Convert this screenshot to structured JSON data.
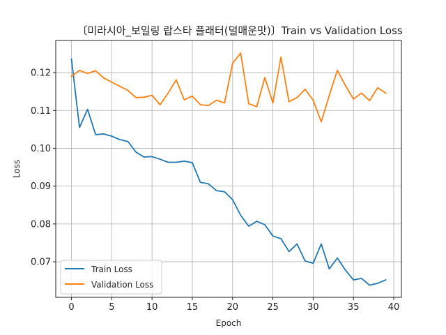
{
  "chart_data": {
    "type": "line",
    "title": "〔미라시아_보일링 랍스타 플래터(덜매운맛)〕Train vs Validation Loss",
    "xlabel": "Epoch",
    "ylabel": "Loss",
    "xlim": [
      -1.95,
      40.95
    ],
    "ylim": [
      0.0606,
      0.1285
    ],
    "xticks": [
      0,
      5,
      10,
      15,
      20,
      25,
      30,
      35,
      40
    ],
    "yticks": [
      0.07,
      0.08,
      0.09,
      0.1,
      0.11,
      0.12
    ],
    "ytick_labels": [
      "0.07",
      "0.08",
      "0.09",
      "0.10",
      "0.11",
      "0.12"
    ],
    "grid": true,
    "legend_position": "lower-left",
    "x": [
      0,
      1,
      2,
      3,
      4,
      5,
      6,
      7,
      8,
      9,
      10,
      11,
      12,
      13,
      14,
      15,
      16,
      17,
      18,
      19,
      20,
      21,
      22,
      23,
      24,
      25,
      26,
      27,
      28,
      29,
      30,
      31,
      32,
      33,
      34,
      35,
      36,
      37,
      38,
      39
    ],
    "series": [
      {
        "name": "Train Loss",
        "color": "#1f77b4",
        "values": [
          0.1236,
          0.1055,
          0.1103,
          0.1036,
          0.1038,
          0.1032,
          0.1023,
          0.1018,
          0.099,
          0.0977,
          0.0978,
          0.0971,
          0.0963,
          0.0963,
          0.0966,
          0.0962,
          0.091,
          0.0906,
          0.0888,
          0.0885,
          0.0864,
          0.0823,
          0.0794,
          0.0807,
          0.0798,
          0.0768,
          0.0761,
          0.0727,
          0.0747,
          0.0702,
          0.0696,
          0.0747,
          0.0681,
          0.071,
          0.0678,
          0.0652,
          0.0656,
          0.0638,
          0.0643,
          0.0652
        ]
      },
      {
        "name": "Validation Loss",
        "color": "#ff7f0e",
        "values": [
          0.119,
          0.1206,
          0.1198,
          0.1205,
          0.1186,
          0.1175,
          0.1164,
          0.1153,
          0.1134,
          0.1135,
          0.114,
          0.1115,
          0.1146,
          0.1181,
          0.1128,
          0.1138,
          0.1115,
          0.1113,
          0.1127,
          0.112,
          0.1225,
          0.1252,
          0.1118,
          0.111,
          0.1187,
          0.112,
          0.1241,
          0.1123,
          0.1134,
          0.1156,
          0.1127,
          0.107,
          0.114,
          0.1206,
          0.1166,
          0.113,
          0.1146,
          0.1126,
          0.116,
          0.1146
        ]
      }
    ]
  }
}
